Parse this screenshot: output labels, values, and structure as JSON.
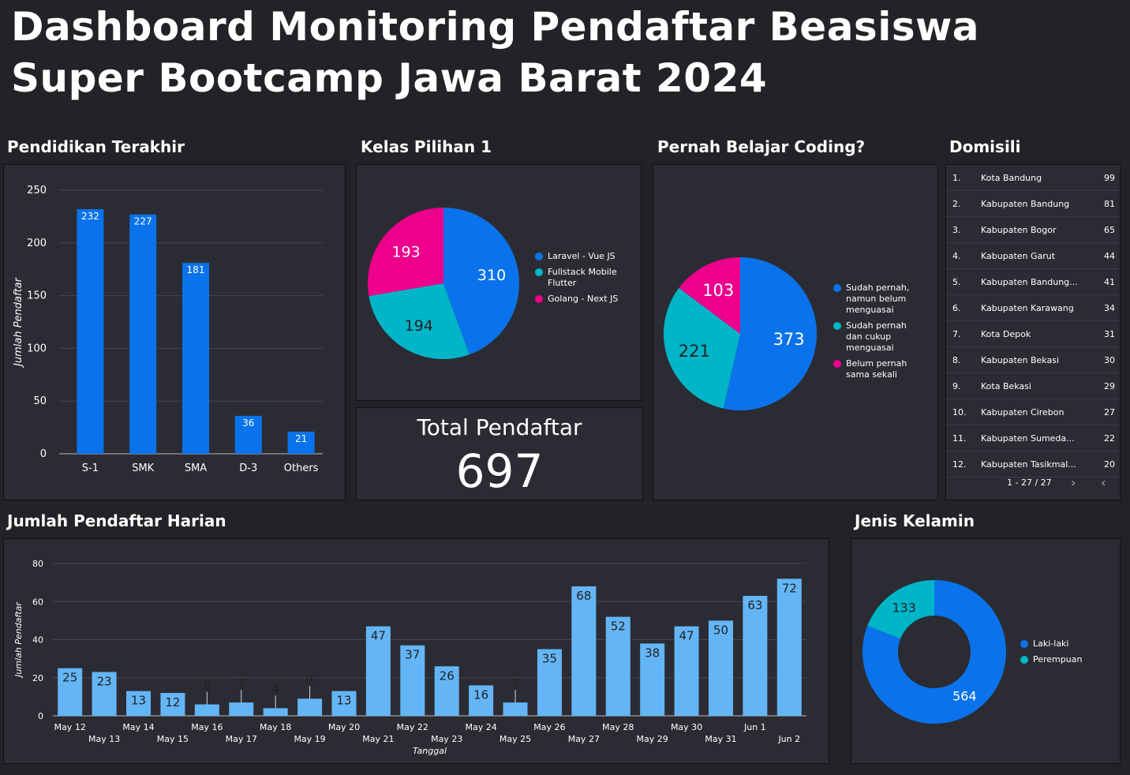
{
  "title_line1": "Dashboard Monitoring Pendaftar Beasiswa",
  "title_line2": "Super Bootcamp Jawa Barat 2024",
  "colors": {
    "blue": "#0a73eb",
    "teal": "#00b5c8",
    "pink": "#ec008c",
    "light_blue": "#64b5f6"
  },
  "pendidikan": {
    "heading": "Pendidikan Terakhir",
    "chart_data": {
      "type": "bar",
      "categories": [
        "S-1",
        "SMK",
        "SMA",
        "D-3",
        "Others"
      ],
      "values": [
        232,
        227,
        181,
        36,
        21
      ],
      "ylabel": "Jumlah Pendaftar",
      "ylim": [
        0,
        250
      ],
      "yticks": [
        0,
        50,
        100,
        150,
        200,
        250
      ]
    }
  },
  "kelas": {
    "heading": "Kelas Pilihan 1",
    "chart_data": {
      "type": "pie",
      "labels": [
        "Laravel - Vue JS",
        "Fullstack Mobile Flutter",
        "Golang - Next JS"
      ],
      "values": [
        310,
        194,
        193
      ],
      "colors": [
        "#0a73eb",
        "#00b5c8",
        "#ec008c"
      ]
    }
  },
  "coding": {
    "heading": "Pernah Belajar Coding?",
    "chart_data": {
      "type": "pie",
      "labels": [
        "Sudah pernah, namun belum menguasai",
        "Sudah pernah dan cukup menguasai",
        "Belum pernah sama sekali"
      ],
      "values": [
        373,
        221,
        103
      ],
      "colors": [
        "#0a73eb",
        "#00b5c8",
        "#ec008c"
      ]
    }
  },
  "total": {
    "label": "Total Pendaftar",
    "value": "697"
  },
  "domisili": {
    "heading": "Domisili",
    "rows": [
      {
        "n": "1.",
        "name": "Kota Bandung",
        "v": "99"
      },
      {
        "n": "2.",
        "name": "Kabupaten Bandung",
        "v": "81"
      },
      {
        "n": "3.",
        "name": "Kabupaten Bogor",
        "v": "65"
      },
      {
        "n": "4.",
        "name": "Kabupaten Garut",
        "v": "44"
      },
      {
        "n": "5.",
        "name": "Kabupaten Bandung...",
        "v": "41"
      },
      {
        "n": "6.",
        "name": "Kabupaten Karawang",
        "v": "34"
      },
      {
        "n": "7.",
        "name": "Kota Depok",
        "v": "31"
      },
      {
        "n": "8.",
        "name": "Kabupaten Bekasi",
        "v": "30"
      },
      {
        "n": "9.",
        "name": "Kota Bekasi",
        "v": "29"
      },
      {
        "n": "10.",
        "name": "Kabupaten Cirebon",
        "v": "27"
      },
      {
        "n": "11.",
        "name": "Kabupaten Sumeda...",
        "v": "22"
      },
      {
        "n": "12.",
        "name": "Kabupaten Tasikmal...",
        "v": "20"
      }
    ],
    "pager": "1 - 27 / 27"
  },
  "harian": {
    "heading": "Jumlah Pendaftar Harian",
    "chart_data": {
      "type": "bar",
      "x": [
        "May 12",
        "May 13",
        "May 14",
        "May 15",
        "May 16",
        "May 17",
        "May 18",
        "May 19",
        "May 20",
        "May 21",
        "May 22",
        "May 23",
        "May 24",
        "May 25",
        "May 26",
        "May 27",
        "May 28",
        "May 29",
        "May 30",
        "May 31",
        "Jun 1",
        "Jun 2"
      ],
      "values": [
        25,
        23,
        13,
        12,
        6,
        7,
        4,
        9,
        13,
        47,
        37,
        26,
        16,
        7,
        35,
        68,
        52,
        38,
        47,
        50,
        63,
        72
      ],
      "xlabel": "Tanggal",
      "ylabel": "Jumlah Pendaftar",
      "ylim": [
        0,
        80
      ],
      "yticks": [
        0,
        20,
        40,
        60,
        80
      ]
    }
  },
  "gender": {
    "heading": "Jenis Kelamin",
    "chart_data": {
      "type": "pie",
      "labels": [
        "Laki-laki",
        "Perempuan"
      ],
      "values": [
        564,
        133
      ],
      "colors": [
        "#0a73eb",
        "#00b5c8"
      ]
    }
  }
}
